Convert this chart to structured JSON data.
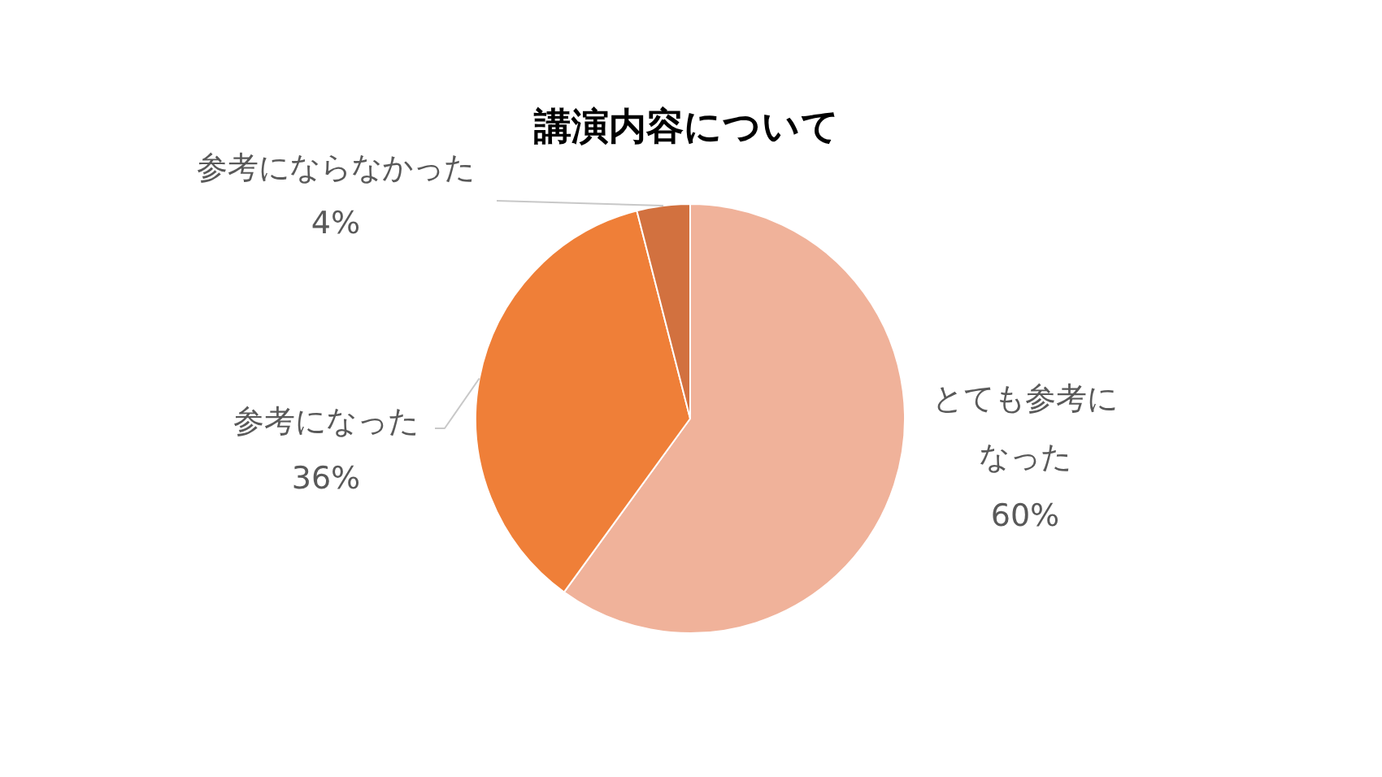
{
  "chart_data": {
    "type": "pie",
    "title": "講演内容について",
    "categories": [
      "とても参考になった",
      "参考になった",
      "参考にならなかった"
    ],
    "values": [
      60,
      36,
      4
    ],
    "value_labels": [
      "60%",
      "36%",
      "4%"
    ],
    "colors": [
      "#f0b29a",
      "#ef7f38",
      "#d2713f"
    ]
  }
}
